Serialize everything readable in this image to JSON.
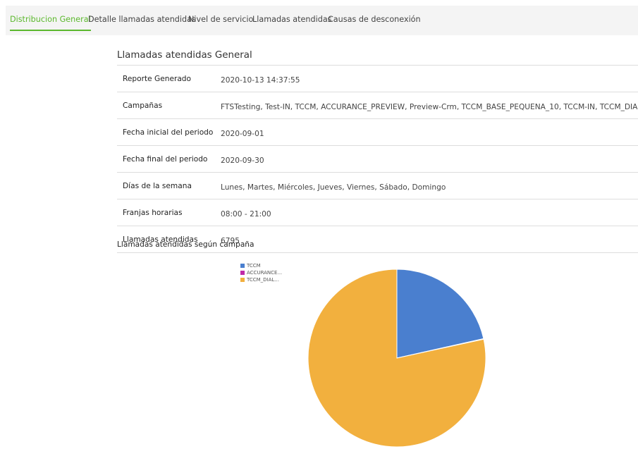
{
  "tabs": [
    {
      "label": "Distribucion General",
      "active": true
    },
    {
      "label": "Detalle llamadas atendidas",
      "active": false
    },
    {
      "label": "Nivel de servicio",
      "active": false
    },
    {
      "label": "Llamadas atendidas",
      "active": false
    },
    {
      "label": "Causas de desconexión",
      "active": false
    }
  ],
  "report": {
    "title": "Llamadas atendidas General",
    "rows": [
      {
        "label": "Reporte Generado",
        "value": "2020-10-13 14:37:55"
      },
      {
        "label": "Campañas",
        "value": "FTSTesting, Test-IN, TCCM, ACCURANCE_PREVIEW, Preview-Crm, TCCM_BASE_PEQUENA_10, TCCM-IN, TCCM_DIALER"
      },
      {
        "label": "Fecha inicial del periodo",
        "value": "2020-09-01"
      },
      {
        "label": "Fecha final del periodo",
        "value": "2020-09-30"
      },
      {
        "label": "Días de la semana",
        "value": "Lunes, Martes, Miércoles, Jueves, Viernes, Sábado, Domingo"
      },
      {
        "label": "Franjas horarias",
        "value": "08:00 - 21:00"
      },
      {
        "label": "Llamadas atendidas",
        "value": "6795"
      }
    ]
  },
  "chart_title": "Llamadas atendidas según campaña",
  "colors": {
    "accent": "#5cb82e",
    "tab_bar_bg": "#f4f4f4"
  },
  "chart_data": {
    "type": "pie",
    "title": "Llamadas atendidas según campaña",
    "legend_position": "top-left",
    "slices": [
      {
        "name": "TCCM",
        "value": 21.5,
        "color": "#4a7fcf"
      },
      {
        "name": "ACCURANCE...",
        "value": 0.1,
        "color": "#c12aa8"
      },
      {
        "name": "TCCM_DIAL...",
        "value": 78.4,
        "color": "#f2b03e"
      }
    ]
  }
}
